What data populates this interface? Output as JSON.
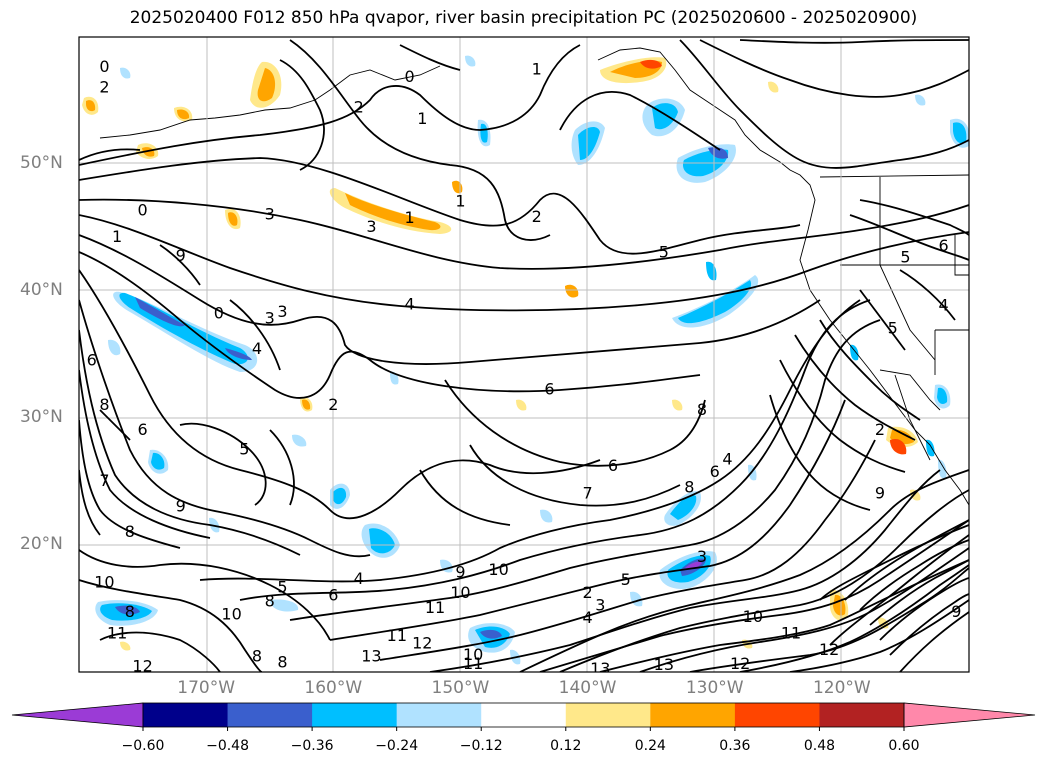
{
  "title": "2025020400 F012 850 hPa qvapor, river basin precipitation PC (2025020600 - 2025020900)",
  "axes": {
    "lat_labels": [
      "50°N",
      "40°N",
      "30°N",
      "20°N"
    ],
    "lon_labels": [
      "170°W",
      "160°W",
      "150°W",
      "140°W",
      "130°W",
      "120°W"
    ],
    "lat_values": [
      50,
      40,
      30,
      20
    ],
    "lon_values": [
      -170,
      -160,
      -150,
      -140,
      -130,
      -120
    ],
    "lat_range": [
      10,
      60
    ],
    "lon_range": [
      -180,
      -110
    ],
    "gridlines": true
  },
  "colorbar": {
    "tick_labels": [
      "−0.60",
      "−0.48",
      "−0.36",
      "−0.24",
      "−0.12",
      "0.12",
      "0.24",
      "0.36",
      "0.48",
      "0.60"
    ],
    "colors": [
      "#9b3bd6",
      "#00008b",
      "#3a5fcd",
      "#00bfff",
      "#b0e2ff",
      "#ffffff",
      "#ffe88a",
      "#ffa500",
      "#ff4500",
      "#b22222",
      "#ff88aa"
    ],
    "extend": "both"
  },
  "contour_labels": [
    {
      "text": "1",
      "lon": -144,
      "lat": 57.4
    },
    {
      "text": "0",
      "lon": -178,
      "lat": 57.6
    },
    {
      "text": "2",
      "lon": -178,
      "lat": 56
    },
    {
      "text": "1",
      "lon": -153,
      "lat": 53.5
    },
    {
      "text": "0",
      "lon": -154,
      "lat": 56.8
    },
    {
      "text": "1",
      "lon": -150,
      "lat": 47
    },
    {
      "text": "2",
      "lon": -144,
      "lat": 45.8
    },
    {
      "text": "3",
      "lon": -165,
      "lat": 46
    },
    {
      "text": "3",
      "lon": -157,
      "lat": 45
    },
    {
      "text": "1",
      "lon": -154,
      "lat": 45.7
    },
    {
      "text": "2",
      "lon": -158,
      "lat": 54.4
    },
    {
      "text": "4",
      "lon": -154,
      "lat": 38.9
    },
    {
      "text": "5",
      "lon": -134,
      "lat": 43
    },
    {
      "text": "6",
      "lon": -143,
      "lat": 32.2
    },
    {
      "text": "6",
      "lon": -138,
      "lat": 26.2
    },
    {
      "text": "7",
      "lon": -140,
      "lat": 24
    },
    {
      "text": "8",
      "lon": -131,
      "lat": 30.6
    },
    {
      "text": "9",
      "lon": -150,
      "lat": 17.8
    },
    {
      "text": "10",
      "lon": -147,
      "lat": 18
    },
    {
      "text": "10",
      "lon": -150,
      "lat": 16.2
    },
    {
      "text": "11",
      "lon": -152,
      "lat": 15
    },
    {
      "text": "11",
      "lon": -155,
      "lat": 12.8
    },
    {
      "text": "12",
      "lon": -153,
      "lat": 12.2
    },
    {
      "text": "13",
      "lon": -157,
      "lat": 11.2
    },
    {
      "text": "10",
      "lon": -149,
      "lat": 11.3
    },
    {
      "text": "11",
      "lon": -149,
      "lat": 10.6
    },
    {
      "text": "13",
      "lon": -139,
      "lat": 10.2
    },
    {
      "text": "13",
      "lon": -134,
      "lat": 10.5
    },
    {
      "text": "12",
      "lon": -128,
      "lat": 10.6
    },
    {
      "text": "10",
      "lon": -127,
      "lat": 14.3
    },
    {
      "text": "11",
      "lon": -124,
      "lat": 13
    },
    {
      "text": "12",
      "lon": -121,
      "lat": 11.7
    },
    {
      "text": "12",
      "lon": -175,
      "lat": 10.4
    },
    {
      "text": "11",
      "lon": -177,
      "lat": 13
    },
    {
      "text": "10",
      "lon": -168,
      "lat": 14.5
    },
    {
      "text": "10",
      "lon": -178,
      "lat": 17
    },
    {
      "text": "8",
      "lon": -176,
      "lat": 14.7
    },
    {
      "text": "8",
      "lon": -178,
      "lat": 31
    },
    {
      "text": "7",
      "lon": -178,
      "lat": 25
    },
    {
      "text": "8",
      "lon": -176,
      "lat": 21
    },
    {
      "text": "9",
      "lon": -172,
      "lat": 23
    },
    {
      "text": "6",
      "lon": -179,
      "lat": 34.5
    },
    {
      "text": "6",
      "lon": -175,
      "lat": 29
    },
    {
      "text": "5",
      "lon": -167,
      "lat": 27.5
    },
    {
      "text": "0",
      "lon": -175,
      "lat": 46.3
    },
    {
      "text": "1",
      "lon": -177,
      "lat": 44.2
    },
    {
      "text": "9",
      "lon": -172,
      "lat": 42.7
    },
    {
      "text": "0",
      "lon": -169,
      "lat": 38.2
    },
    {
      "text": "3",
      "lon": -165,
      "lat": 37.8
    },
    {
      "text": "3",
      "lon": -164,
      "lat": 38.3
    },
    {
      "text": "4",
      "lon": -166,
      "lat": 35.4
    },
    {
      "text": "2",
      "lon": -160,
      "lat": 31
    },
    {
      "text": "5",
      "lon": -164,
      "lat": 16.6
    },
    {
      "text": "6",
      "lon": -160,
      "lat": 16
    },
    {
      "text": "4",
      "lon": -158,
      "lat": 17.3
    },
    {
      "text": "8",
      "lon": -165,
      "lat": 15.5
    },
    {
      "text": "8",
      "lon": -166,
      "lat": 11.2
    },
    {
      "text": "8",
      "lon": -164,
      "lat": 10.7
    },
    {
      "text": "8",
      "lon": -132,
      "lat": 24.5
    },
    {
      "text": "6",
      "lon": -130,
      "lat": 25.7
    },
    {
      "text": "4",
      "lon": -129,
      "lat": 26.7
    },
    {
      "text": "3",
      "lon": -131,
      "lat": 19
    },
    {
      "text": "5",
      "lon": -137,
      "lat": 17.2
    },
    {
      "text": "3",
      "lon": -139,
      "lat": 15.2
    },
    {
      "text": "4",
      "lon": -140,
      "lat": 14.2
    },
    {
      "text": "2",
      "lon": -140,
      "lat": 16.2
    },
    {
      "text": "9",
      "lon": -117,
      "lat": 24
    },
    {
      "text": "5",
      "lon": -115,
      "lat": 42.6
    },
    {
      "text": "4",
      "lon": -112,
      "lat": 38.8
    },
    {
      "text": "5",
      "lon": -116,
      "lat": 37
    },
    {
      "text": "6",
      "lon": -112,
      "lat": 43.5
    },
    {
      "text": "2",
      "lon": -117,
      "lat": 29
    },
    {
      "text": "9",
      "lon": -111,
      "lat": 14.7
    }
  ]
}
